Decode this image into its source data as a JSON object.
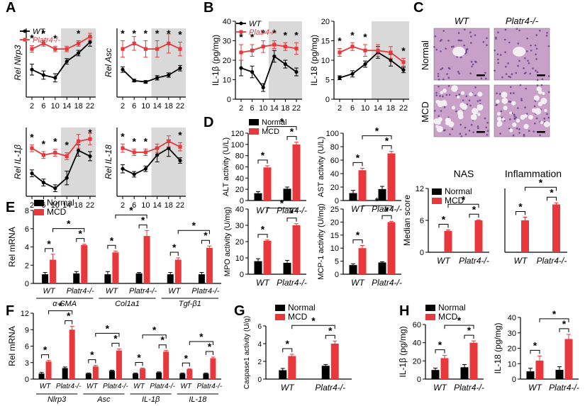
{
  "panel_labels": [
    "A",
    "B",
    "C",
    "D",
    "E",
    "F",
    "G",
    "H"
  ],
  "colors": {
    "wt": "#000000",
    "platr4": "#e8383b",
    "shade": "#d9d9d9",
    "tissue": "#c9a0c8"
  },
  "legends": {
    "genotype": [
      "WT",
      "Platr4-/-"
    ],
    "diet": [
      "Normal",
      "MCD"
    ]
  },
  "histology": {
    "col_labels": [
      "WT",
      "Platr4-/-"
    ],
    "row_labels": [
      "Normal",
      "MCD"
    ]
  },
  "chart_data": [
    {
      "id": "A1",
      "type": "line",
      "ylabel": "Rel Nlrp3",
      "xticks": [
        2,
        6,
        10,
        14,
        18,
        22
      ],
      "ylim": [
        0,
        2.5
      ],
      "series": [
        {
          "name": "WT",
          "values": [
            1.0,
            0.8,
            0.7,
            1.3,
            1.6,
            2.0
          ],
          "err": [
            0.2,
            0.15,
            0.15,
            0.1,
            0.1,
            0.15
          ]
        },
        {
          "name": "Platr4-/-",
          "values": [
            1.75,
            1.95,
            1.75,
            1.75,
            1.95,
            2.2
          ],
          "err": [
            0.12,
            0.1,
            0.1,
            0.1,
            0.1,
            0.12
          ]
        }
      ],
      "stars": [
        "*",
        "*",
        "*",
        "*"
      ]
    },
    {
      "id": "A2",
      "type": "line",
      "ylabel": "Rel Asc",
      "xticks": [
        2,
        6,
        10,
        14,
        18,
        22
      ],
      "ylim": [
        0,
        2.5
      ],
      "series": [
        {
          "name": "WT",
          "values": [
            1.0,
            0.6,
            0.55,
            0.7,
            0.8,
            1.05
          ],
          "err": [
            0.1,
            0.05,
            0.05,
            0.08,
            0.08,
            0.1
          ]
        },
        {
          "name": "Platr4-/-",
          "values": [
            1.75,
            1.95,
            1.75,
            1.75,
            1.95,
            1.75
          ],
          "err": [
            0.3,
            0.25,
            0.3,
            0.3,
            0.35,
            0.25
          ]
        }
      ],
      "stars": [
        "*",
        "*",
        "*",
        "*",
        "*",
        "*"
      ]
    },
    {
      "id": "A3",
      "type": "line",
      "ylabel": "Rel IL-1β",
      "xticks": [
        2,
        6,
        10,
        14,
        18,
        22
      ],
      "ylim": [
        0,
        3
      ],
      "series": [
        {
          "name": "WT",
          "values": [
            1.0,
            0.6,
            0.35,
            0.8,
            2.0,
            1.75
          ],
          "err": [
            0.15,
            0.15,
            0.15,
            0.3,
            0.25,
            0.2
          ]
        },
        {
          "name": "Platr4-/-",
          "values": [
            2.1,
            1.8,
            1.9,
            1.75,
            2.4,
            2.5
          ],
          "err": [
            0.15,
            0.15,
            0.15,
            0.15,
            0.3,
            0.25
          ]
        }
      ],
      "stars": [
        "*",
        "*",
        "*",
        "*",
        "*"
      ]
    },
    {
      "id": "A4",
      "type": "line",
      "ylabel": "Rel IL-18",
      "xticks": [
        2,
        6,
        10,
        14,
        18,
        22
      ],
      "ylim": [
        0,
        2.5
      ],
      "series": [
        {
          "name": "WT",
          "values": [
            1.0,
            0.8,
            1.0,
            1.5,
            1.75,
            1.3
          ],
          "err": [
            0.15,
            0.1,
            0.1,
            0.25,
            0.3,
            0.1
          ]
        },
        {
          "name": "Platr4-/-",
          "values": [
            1.75,
            1.6,
            1.6,
            1.75,
            2.0,
            1.8
          ],
          "err": [
            0.15,
            0.12,
            0.12,
            0.15,
            0.2,
            0.15
          ]
        }
      ],
      "stars": [
        "*",
        "*",
        "*",
        "*"
      ]
    },
    {
      "id": "B1",
      "type": "line",
      "ylabel": "IL-1β (pg/mg)",
      "xticks": [
        2,
        6,
        10,
        14,
        18,
        22
      ],
      "ylim": [
        0,
        40
      ],
      "yticks": [
        0,
        10,
        20,
        30,
        40
      ],
      "series": [
        {
          "name": "WT",
          "values": [
            16,
            14,
            6,
            22,
            18,
            14
          ],
          "err": [
            4,
            3,
            2,
            3,
            2,
            2
          ]
        },
        {
          "name": "Platr4-/-",
          "values": [
            24,
            25,
            27,
            28,
            27,
            26
          ],
          "err": [
            4,
            3,
            3,
            2,
            2,
            3
          ]
        }
      ],
      "stars": [
        "*",
        "*",
        "*",
        "*",
        "*",
        "*",
        "*",
        "*"
      ]
    },
    {
      "id": "B2",
      "type": "line",
      "ylabel": "IL-18 (pg/mg)",
      "xticks": [
        2,
        6,
        10,
        14,
        18,
        22
      ],
      "ylim": [
        0,
        20
      ],
      "yticks": [
        0,
        5,
        10,
        15,
        20
      ],
      "series": [
        {
          "name": "WT",
          "values": [
            5.5,
            6.5,
            9,
            12,
            10,
            7.5
          ],
          "err": [
            0.5,
            0.8,
            0.8,
            1.5,
            1.5,
            0.7
          ]
        },
        {
          "name": "Platr4-/-",
          "values": [
            12,
            13.5,
            12.5,
            12.5,
            12,
            9.5
          ],
          "err": [
            1,
            1,
            1.5,
            1.5,
            1.5,
            1
          ]
        }
      ],
      "stars": [
        "*",
        "*",
        "*",
        "*"
      ]
    },
    {
      "id": "C_NAS",
      "type": "bar",
      "title": "NAS",
      "ylabel": "Median score",
      "categories": [
        "WT",
        "Platr4-/-"
      ],
      "ylim": [
        0,
        12
      ],
      "yticks": [
        0,
        6,
        12
      ],
      "series": [
        {
          "name": "Normal",
          "values": [
            0,
            0
          ]
        },
        {
          "name": "MCD",
          "values": [
            4,
            6
          ],
          "err": [
            0.2,
            0.1
          ]
        }
      ]
    },
    {
      "id": "C_Inf",
      "type": "bar",
      "title": "Inflammation",
      "categories": [
        "WT",
        "Platr4-/-"
      ],
      "ylim": [
        0,
        4
      ],
      "series": [
        {
          "name": "Normal",
          "values": [
            0,
            0
          ]
        },
        {
          "name": "MCD",
          "values": [
            2,
            3
          ],
          "err": [
            0.2,
            0.1
          ]
        }
      ]
    },
    {
      "id": "D_ALT",
      "type": "bar",
      "ylabel": "ALT activity (U/L)",
      "categories": [
        "WT",
        "Platr4-/-"
      ],
      "ylim": [
        0,
        120
      ],
      "yticks": [
        0,
        20,
        40,
        60,
        80,
        100,
        120
      ],
      "series": [
        {
          "name": "Normal",
          "values": [
            13,
            21
          ],
          "err": [
            3,
            3
          ]
        },
        {
          "name": "MCD",
          "values": [
            59,
            100
          ],
          "err": [
            3,
            4
          ]
        }
      ]
    },
    {
      "id": "D_AST",
      "type": "bar",
      "ylabel": "AST activity (U/L)",
      "categories": [
        "WT",
        "Platr4-/-"
      ],
      "ylim": [
        0,
        100
      ],
      "yticks": [
        0,
        20,
        40,
        60,
        80,
        100
      ],
      "series": [
        {
          "name": "Normal",
          "values": [
            11,
            17
          ],
          "err": [
            4,
            4
          ]
        },
        {
          "name": "MCD",
          "values": [
            45,
            70
          ],
          "err": [
            3,
            3
          ]
        }
      ]
    },
    {
      "id": "D_MPO",
      "type": "bar",
      "ylabel": "MPO activity (U/mg)",
      "categories": [
        "WT",
        "Platr4-/-"
      ],
      "ylim": [
        0,
        40
      ],
      "yticks": [
        0,
        10,
        20,
        30,
        40
      ],
      "series": [
        {
          "name": "Normal",
          "values": [
            8,
            7
          ],
          "err": [
            1.5,
            1.5
          ]
        },
        {
          "name": "MCD",
          "values": [
            20.5,
            30
          ],
          "err": [
            0.5,
            1
          ]
        }
      ]
    },
    {
      "id": "D_MCP",
      "type": "bar",
      "ylabel": "MCP-1 activity (U/mg)",
      "categories": [
        "WT",
        "Platr4-/-"
      ],
      "ylim": [
        0,
        25
      ],
      "yticks": [
        0,
        5,
        10,
        15,
        20,
        25
      ],
      "series": [
        {
          "name": "Normal",
          "values": [
            3.5,
            4.5
          ],
          "err": [
            0.5,
            0.3
          ]
        },
        {
          "name": "MCD",
          "values": [
            10,
            20
          ],
          "err": [
            1,
            0.3
          ]
        }
      ]
    },
    {
      "id": "E",
      "type": "bar",
      "ylabel": "Rel mRNA",
      "categories": [
        "WT",
        "Platr4-/-",
        "WT",
        "Platr4-/-",
        "WT",
        "Platr4-/-"
      ],
      "groups": [
        "α-SMA",
        "Col1a1",
        "Tgf-β1"
      ],
      "ylim": [
        0,
        8
      ],
      "yticks": [
        0,
        2,
        4,
        6,
        8
      ],
      "series": [
        {
          "name": "Normal",
          "values": [
            1,
            1.1,
            1,
            1.1,
            1,
            1
          ],
          "err": [
            0.2,
            0.2,
            0.3,
            0.1,
            0.2,
            0.2
          ]
        },
        {
          "name": "MCD",
          "values": [
            2.6,
            4.2,
            3.4,
            5.2,
            2.6,
            3.9
          ],
          "err": [
            0.6,
            0.1,
            0.15,
            0.6,
            0.2,
            0.2
          ]
        }
      ]
    },
    {
      "id": "F",
      "type": "bar",
      "ylabel": "Rel mRNA",
      "categories": [
        "WT",
        "Platr4-/-",
        "WT",
        "Platr4-/-",
        "WT",
        "Platr4-/-",
        "WT",
        "Platr4-/-"
      ],
      "groups": [
        "Nlrp3",
        "Asc",
        "IL-1β",
        "IL-18"
      ],
      "ylim": [
        0,
        12
      ],
      "yticks": [
        0,
        3,
        6,
        9,
        12
      ],
      "series": [
        {
          "name": "Normal",
          "values": [
            1,
            2,
            1,
            1.5,
            1,
            1.2,
            1,
            1
          ],
          "err": [
            0.2,
            0.2,
            0.1,
            0.1,
            0.1,
            0.1,
            0.1,
            0.1
          ]
        },
        {
          "name": "MCD",
          "values": [
            3.2,
            9,
            2.3,
            5.2,
            1.9,
            5.0,
            1.8,
            3.8
          ],
          "err": [
            0.2,
            0.6,
            0.2,
            0.3,
            0.1,
            0.2,
            0.1,
            0.2
          ]
        }
      ]
    },
    {
      "id": "G",
      "type": "bar",
      "ylabel": "Caspase1 activity (U/g)",
      "categories": [
        "WT",
        "Platr4-/-"
      ],
      "ylim": [
        0,
        6
      ],
      "yticks": [
        0,
        2,
        4,
        6
      ],
      "series": [
        {
          "name": "Normal",
          "values": [
            1,
            1.5
          ],
          "err": [
            0.2,
            0.15
          ]
        },
        {
          "name": "MCD",
          "values": [
            2.6,
            4
          ],
          "err": [
            0.2,
            0.3
          ]
        }
      ]
    },
    {
      "id": "H1",
      "type": "bar",
      "ylabel": "IL-1β (pg/mg)",
      "categories": [
        "WT",
        "Platr4-/-"
      ],
      "ylim": [
        0,
        60
      ],
      "yticks": [
        0,
        20,
        40,
        60
      ],
      "series": [
        {
          "name": "Normal",
          "values": [
            10,
            13
          ],
          "err": [
            2,
            3
          ]
        },
        {
          "name": "MCD",
          "values": [
            23,
            40
          ],
          "err": [
            3,
            2
          ]
        }
      ]
    },
    {
      "id": "H2",
      "type": "bar",
      "ylabel": "IL-18 (pg/mg)",
      "categories": [
        "WT",
        "Platr4-/-"
      ],
      "ylim": [
        0,
        40
      ],
      "yticks": [
        0,
        10,
        20,
        30,
        40
      ],
      "series": [
        {
          "name": "Normal",
          "values": [
            5,
            6
          ],
          "err": [
            2,
            2
          ]
        },
        {
          "name": "MCD",
          "values": [
            12,
            26
          ],
          "err": [
            3,
            3
          ]
        }
      ]
    }
  ]
}
